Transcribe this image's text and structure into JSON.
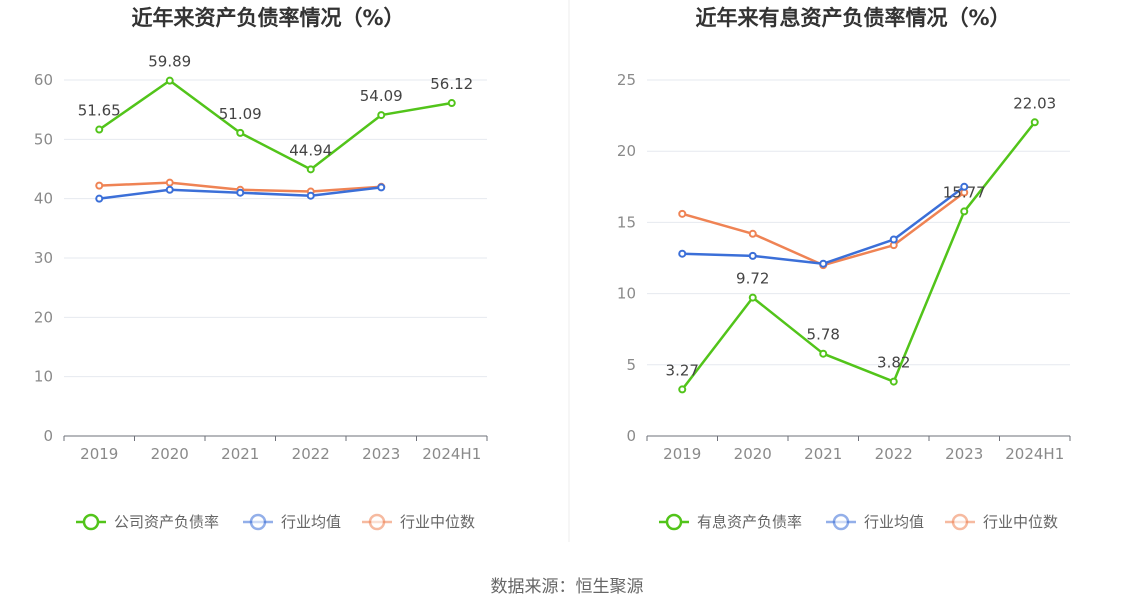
{
  "source_label": "数据来源：恒生聚源",
  "chart_data": [
    {
      "type": "line",
      "title": "近年来资产负债率情况（%）",
      "categories": [
        "2019",
        "2020",
        "2021",
        "2022",
        "2023",
        "2024H1"
      ],
      "ylim": [
        0,
        60
      ],
      "yticks": [
        0,
        10,
        20,
        30,
        40,
        50,
        60
      ],
      "grid": true,
      "legend_position": "bottom",
      "series": [
        {
          "name": "公司资产负债率",
          "color": "#52c41a",
          "values": [
            51.65,
            59.89,
            51.09,
            44.94,
            54.09,
            56.12
          ],
          "labels": [
            "51.65",
            "59.89",
            "51.09",
            "44.94",
            "54.09",
            "56.12"
          ]
        },
        {
          "name": "行业均值",
          "color": "#3b6fd8",
          "values": [
            40.0,
            41.5,
            41.0,
            40.5,
            41.9,
            null
          ]
        },
        {
          "name": "行业中位数",
          "color": "#ef8354",
          "values": [
            42.2,
            42.7,
            41.5,
            41.2,
            42.0,
            null
          ]
        }
      ]
    },
    {
      "type": "line",
      "title": "近年来有息资产负债率情况（%）",
      "categories": [
        "2019",
        "2020",
        "2021",
        "2022",
        "2023",
        "2024H1"
      ],
      "ylim": [
        0,
        25
      ],
      "yticks": [
        0,
        5,
        10,
        15,
        20,
        25
      ],
      "grid": true,
      "legend_position": "bottom",
      "series": [
        {
          "name": "有息资产负债率",
          "color": "#52c41a",
          "values": [
            3.27,
            9.72,
            5.78,
            3.82,
            15.77,
            22.03
          ],
          "labels": [
            "3.27",
            "9.72",
            "5.78",
            "3.82",
            "15.77",
            "22.03"
          ]
        },
        {
          "name": "行业均值",
          "color": "#3b6fd8",
          "values": [
            12.8,
            12.65,
            12.1,
            13.8,
            17.5,
            null
          ]
        },
        {
          "name": "行业中位数",
          "color": "#ef8354",
          "values": [
            15.6,
            14.2,
            12.0,
            13.4,
            17.1,
            null
          ]
        }
      ]
    }
  ]
}
